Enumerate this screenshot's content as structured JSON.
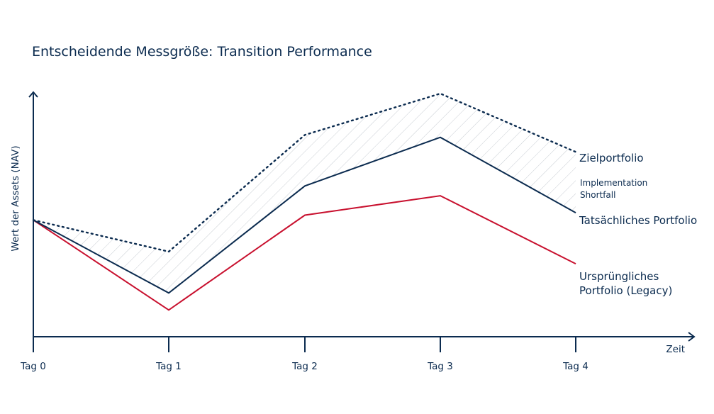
{
  "chart_data": {
    "type": "line",
    "title": "Entscheidende Messgröße: Transition Performance",
    "xlabel": "Zeit",
    "ylabel": "Wert der Assets (NAV)",
    "categories": [
      "Tag 0",
      "Tag 1",
      "Tag 2",
      "Tag 3",
      "Tag 4"
    ],
    "ylim": [
      0,
      100
    ],
    "series": [
      {
        "name": "Zielportfolio",
        "values": [
          48,
          35,
          83,
          100,
          76
        ],
        "style": "dotted",
        "color": "#0b2b4f"
      },
      {
        "name": "Tatsächliches Portfolio",
        "values": [
          48,
          18,
          62,
          82,
          51
        ],
        "style": "solid",
        "color": "#0b2b4f"
      },
      {
        "name": "Ursprüngliches Portfolio (Legacy)",
        "values": [
          48,
          11,
          50,
          58,
          30
        ],
        "style": "solid",
        "color": "#c8102e"
      }
    ],
    "annotations": [
      {
        "text": "Implementation Shortfall",
        "between": [
          "Zielportfolio",
          "Tatsächliches Portfolio"
        ]
      }
    ],
    "labels": {
      "ziel": "Zielportfolio",
      "shortfall_1": "Implementation",
      "shortfall_2": "Shortfall",
      "tatsaechlich": "Tatsächliches Portfolio",
      "legacy_1": "Ursprüngliches",
      "legacy_2": "Portfolio (Legacy)"
    },
    "grid": false
  }
}
